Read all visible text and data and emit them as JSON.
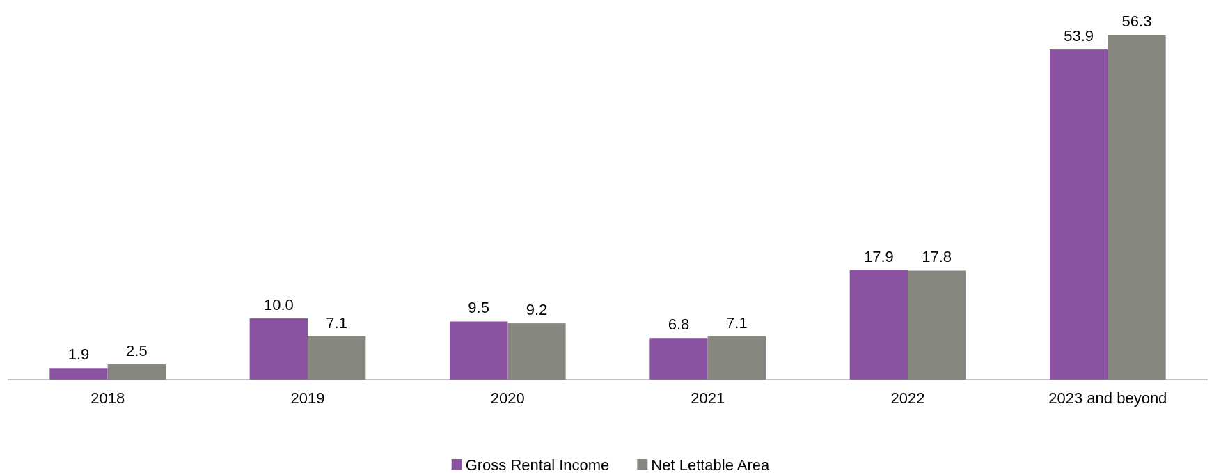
{
  "chart_data": {
    "type": "bar",
    "categories": [
      "2018",
      "2019",
      "2020",
      "2021",
      "2022",
      "2023 and beyond"
    ],
    "series": [
      {
        "name": "Gross Rental Income",
        "color": "#8b52a1",
        "values": [
          1.9,
          10.0,
          9.5,
          6.8,
          17.9,
          53.9
        ],
        "value_labels": [
          "1.9",
          "10.0",
          "9.5",
          "6.8",
          "17.9",
          "53.9"
        ]
      },
      {
        "name": "Net Lettable Area",
        "color": "#878780",
        "values": [
          2.5,
          7.1,
          9.2,
          7.1,
          17.8,
          56.3
        ],
        "value_labels": [
          "2.5",
          "7.1",
          "9.2",
          "7.1",
          "17.8",
          "56.3"
        ]
      }
    ],
    "legend": "bottom"
  }
}
